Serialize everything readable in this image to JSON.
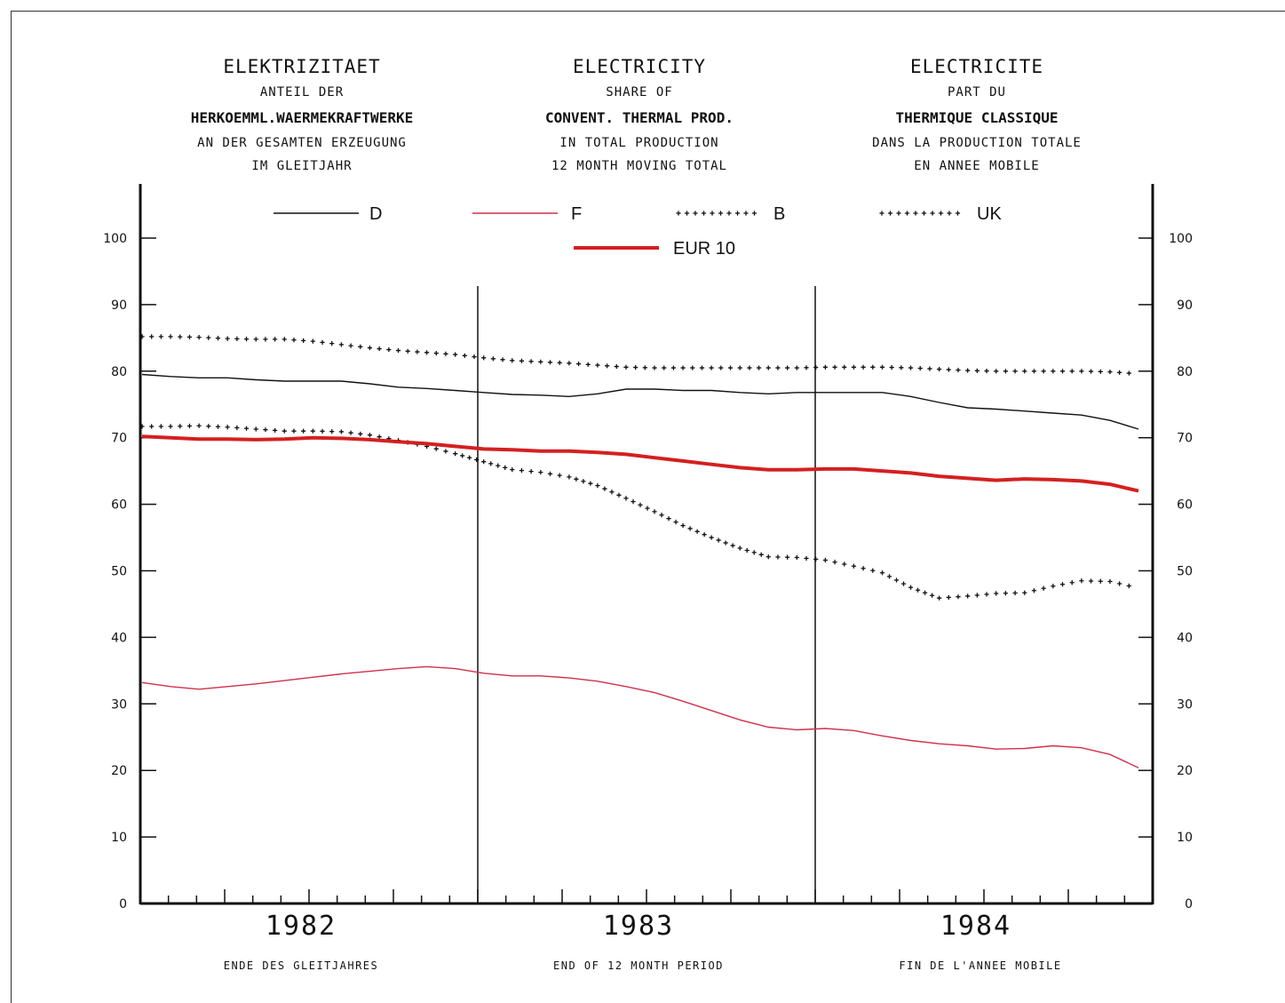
{
  "titles": {
    "de": {
      "title": "ELEKTRIZITAET",
      "line1": "ANTEIL DER",
      "line2": "HERKOEMML.WAERMEKRAFTWERKE",
      "line3": "AN DER GESAMTEN ERZEUGUNG",
      "line4": "IM GLEITJAHR"
    },
    "en": {
      "title": "ELECTRICITY",
      "line1": "SHARE OF",
      "line2": "CONVENT. THERMAL PROD.",
      "line3": "IN TOTAL PRODUCTION",
      "line4": "12 MONTH MOVING TOTAL"
    },
    "fr": {
      "title": "ELECTRICITE",
      "line1": "PART DU",
      "line2": "THERMIQUE CLASSIQUE",
      "line3": "DANS LA PRODUCTION TOTALE",
      "line4": "EN ANNEE MOBILE"
    }
  },
  "footer": {
    "de": "ENDE DES GLEITJAHRES",
    "en": "END OF 12 MONTH PERIOD",
    "fr": "FIN DE L'ANNEE MOBILE"
  },
  "colors": {
    "axis": "#111111",
    "D": "#111111",
    "F": "#d0304a",
    "B": "#111111",
    "UK": "#111111",
    "EUR10": "#d42020"
  },
  "chart_data": {
    "type": "line",
    "x": [
      "1982-01",
      "1982-02",
      "1982-03",
      "1982-04",
      "1982-05",
      "1982-06",
      "1982-07",
      "1982-08",
      "1982-09",
      "1982-10",
      "1982-11",
      "1982-12",
      "1983-01",
      "1983-02",
      "1983-03",
      "1983-04",
      "1983-05",
      "1983-06",
      "1983-07",
      "1983-08",
      "1983-09",
      "1983-10",
      "1983-11",
      "1983-12",
      "1984-01",
      "1984-02",
      "1984-03",
      "1984-04",
      "1984-05",
      "1984-06",
      "1984-07",
      "1984-08",
      "1984-09",
      "1984-10",
      "1984-11",
      "1984-12"
    ],
    "x_tick_labels": [
      "1982",
      "1983",
      "1984"
    ],
    "ylim": [
      0,
      100
    ],
    "yticks": [
      "0",
      "10",
      "20",
      "30",
      "40",
      "50",
      "60",
      "70",
      "80",
      "90",
      "100"
    ],
    "grid": false,
    "legend_position": "top",
    "series": [
      {
        "name": "D",
        "style": "thin-solid",
        "values": [
          79.5,
          79.2,
          79.0,
          79.0,
          78.7,
          78.5,
          78.5,
          78.5,
          78.1,
          77.6,
          77.4,
          77.1,
          76.8,
          76.5,
          76.4,
          76.2,
          76.6,
          77.3,
          77.3,
          77.1,
          77.1,
          76.8,
          76.6,
          76.8,
          76.8,
          76.8,
          76.8,
          76.2,
          75.3,
          74.5,
          74.3,
          74.0,
          73.7,
          73.4,
          72.6,
          71.3
        ]
      },
      {
        "name": "F",
        "style": "thin-solid",
        "values": [
          33.2,
          32.6,
          32.2,
          32.6,
          33.0,
          33.5,
          34.0,
          34.5,
          34.9,
          35.3,
          35.6,
          35.3,
          34.6,
          34.2,
          34.2,
          33.9,
          33.4,
          32.6,
          31.7,
          30.4,
          29.0,
          27.6,
          26.5,
          26.1,
          26.3,
          26.0,
          25.2,
          24.5,
          24.0,
          23.7,
          23.2,
          23.3,
          23.7,
          23.4,
          22.4,
          20.4
        ]
      },
      {
        "name": "B",
        "style": "dotted-cross",
        "values": [
          71.7,
          71.7,
          71.8,
          71.6,
          71.3,
          71.0,
          71.0,
          70.9,
          70.4,
          69.6,
          68.7,
          67.6,
          66.4,
          65.2,
          64.8,
          64.1,
          62.8,
          60.9,
          58.9,
          56.8,
          55.0,
          53.4,
          52.1,
          52.0,
          51.6,
          50.7,
          49.7,
          47.5,
          45.9,
          46.2,
          46.6,
          46.7,
          47.7,
          48.5,
          48.4,
          47.4
        ]
      },
      {
        "name": "UK",
        "style": "dotted-cross",
        "values": [
          85.2,
          85.2,
          85.1,
          84.9,
          84.8,
          84.8,
          84.5,
          84.0,
          83.5,
          83.1,
          82.8,
          82.5,
          82.0,
          81.6,
          81.4,
          81.2,
          80.9,
          80.6,
          80.5,
          80.5,
          80.5,
          80.5,
          80.5,
          80.5,
          80.6,
          80.6,
          80.6,
          80.5,
          80.3,
          80.1,
          80.0,
          80.0,
          80.0,
          80.0,
          79.9,
          79.6
        ]
      },
      {
        "name": "EUR 10",
        "style": "thick-solid",
        "values": [
          70.2,
          70.0,
          69.8,
          69.8,
          69.7,
          69.8,
          70.0,
          69.9,
          69.7,
          69.4,
          69.1,
          68.7,
          68.3,
          68.2,
          68.0,
          68.0,
          67.8,
          67.5,
          67.0,
          66.5,
          66.0,
          65.5,
          65.2,
          65.2,
          65.3,
          65.3,
          65.0,
          64.7,
          64.2,
          63.9,
          63.6,
          63.8,
          63.7,
          63.5,
          63.0,
          62.0
        ]
      }
    ]
  }
}
